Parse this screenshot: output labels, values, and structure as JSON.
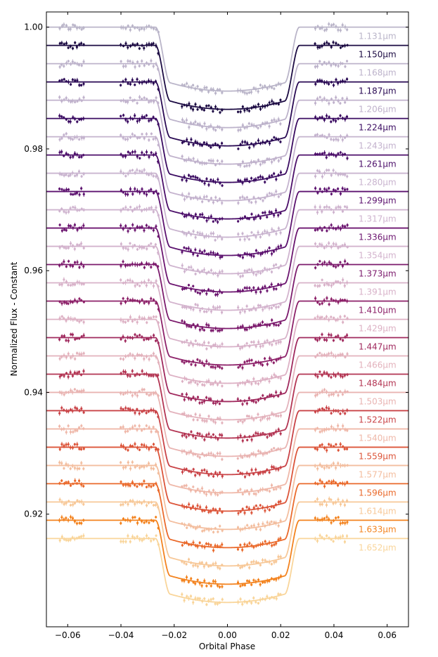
{
  "chart_data": {
    "type": "line",
    "title": "",
    "xlabel": "Orbital Phase",
    "ylabel": "Normalized Flux - Constant",
    "xlim": [
      -0.068,
      0.068
    ],
    "ylim": [
      0.9015,
      1.0025
    ],
    "x_ticks": [
      -0.06,
      -0.04,
      -0.02,
      0.0,
      0.02,
      0.04,
      0.06
    ],
    "x_tick_labels": [
      "−0.06",
      "−0.04",
      "−0.02",
      "0.00",
      "0.02",
      "0.04",
      "0.06"
    ],
    "y_ticks": [
      0.92,
      0.94,
      0.96,
      0.98,
      1.0
    ],
    "y_tick_labels": [
      "0.92",
      "0.94",
      "0.96",
      "0.98",
      "1.00"
    ],
    "transit_depth": 0.0105,
    "contact_phases": {
      "t1": 0.027,
      "t2": 0.0215
    },
    "model_x_extent": [
      -0.068,
      0.068
    ],
    "data_x_extent": [
      -0.063,
      0.045
    ],
    "data_windows": [
      [
        -0.063,
        -0.054
      ],
      [
        -0.04,
        -0.026
      ],
      [
        -0.017,
        -0.002
      ],
      [
        0.004,
        0.02
      ],
      [
        0.033,
        0.045
      ]
    ],
    "series": [
      {
        "label": "1.131μm",
        "baseline": 1.0,
        "color": "#bab5c9"
      },
      {
        "label": "1.150μm",
        "baseline": 0.997,
        "color": "#1c0b43"
      },
      {
        "label": "1.168μm",
        "baseline": 0.994,
        "color": "#bdb3cb"
      },
      {
        "label": "1.187μm",
        "baseline": 0.991,
        "color": "#2a0a54"
      },
      {
        "label": "1.206μm",
        "baseline": 0.988,
        "color": "#c0b2cc"
      },
      {
        "label": "1.224μm",
        "baseline": 0.985,
        "color": "#3b0c62"
      },
      {
        "label": "1.243μm",
        "baseline": 0.982,
        "color": "#c4b3ce"
      },
      {
        "label": "1.261μm",
        "baseline": 0.979,
        "color": "#4c0f6a"
      },
      {
        "label": "1.280μm",
        "baseline": 0.976,
        "color": "#c9b4cf"
      },
      {
        "label": "1.299μm",
        "baseline": 0.973,
        "color": "#5c126f"
      },
      {
        "label": "1.317μm",
        "baseline": 0.97,
        "color": "#cfb4cf"
      },
      {
        "label": "1.336μm",
        "baseline": 0.967,
        "color": "#6c1670"
      },
      {
        "label": "1.354μm",
        "baseline": 0.964,
        "color": "#d3b3cd"
      },
      {
        "label": "1.373μm",
        "baseline": 0.961,
        "color": "#7c1b6d"
      },
      {
        "label": "1.391μm",
        "baseline": 0.958,
        "color": "#d8b2c9"
      },
      {
        "label": "1.410μm",
        "baseline": 0.955,
        "color": "#8d2169"
      },
      {
        "label": "1.429μm",
        "baseline": 0.952,
        "color": "#ddb1c4"
      },
      {
        "label": "1.447μm",
        "baseline": 0.949,
        "color": "#a02a5e"
      },
      {
        "label": "1.466μm",
        "baseline": 0.946,
        "color": "#e3b2bc"
      },
      {
        "label": "1.484μm",
        "baseline": 0.943,
        "color": "#b33553"
      },
      {
        "label": "1.503μm",
        "baseline": 0.94,
        "color": "#e9b4b2"
      },
      {
        "label": "1.522μm",
        "baseline": 0.937,
        "color": "#c94347"
      },
      {
        "label": "1.540μm",
        "baseline": 0.934,
        "color": "#efb8a9"
      },
      {
        "label": "1.559μm",
        "baseline": 0.931,
        "color": "#dc553a"
      },
      {
        "label": "1.577μm",
        "baseline": 0.928,
        "color": "#f3be9f"
      },
      {
        "label": "1.596μm",
        "baseline": 0.925,
        "color": "#ea6a2c"
      },
      {
        "label": "1.614μm",
        "baseline": 0.922,
        "color": "#f7c898"
      },
      {
        "label": "1.633μm",
        "baseline": 0.919,
        "color": "#f3831f"
      },
      {
        "label": "1.652μm",
        "baseline": 0.916,
        "color": "#f9d59a"
      }
    ]
  }
}
